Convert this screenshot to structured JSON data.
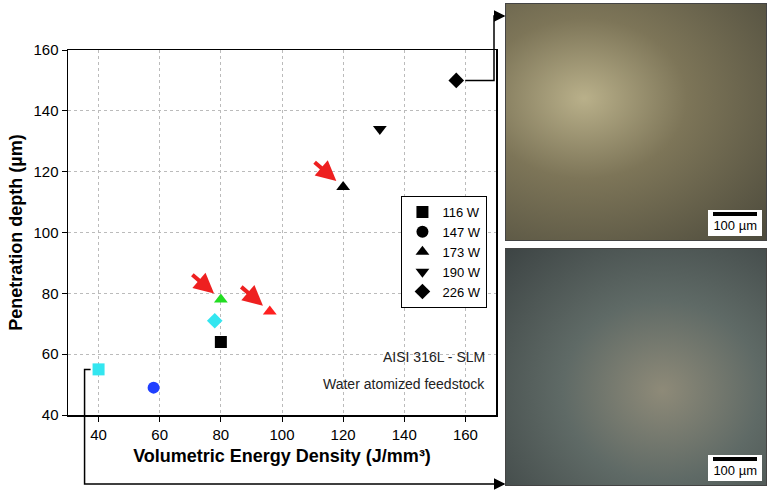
{
  "chart_data": {
    "type": "scatter",
    "x_label": "Volumetric Energy Density (J/mm³)",
    "y_label": "Penetration depth (µm)",
    "annotations": [
      "AISI 316L - SLM",
      "Water atomized feedstock"
    ],
    "xlim": [
      30,
      170
    ],
    "xticks": [
      40,
      60,
      80,
      100,
      120,
      140,
      160
    ],
    "ylim": [
      40,
      160
    ],
    "yticks": [
      40,
      60,
      80,
      100,
      120,
      140,
      160
    ],
    "grid": true,
    "legend": "right",
    "series": [
      {
        "name": "116 W",
        "marker": "square",
        "color": "#000000",
        "x": [
          40,
          80
        ],
        "values": [
          55,
          64
        ],
        "colors": [
          "#33e6f0",
          "#000000"
        ]
      },
      {
        "name": "147 W",
        "marker": "circle",
        "color": "#000000",
        "x": [
          58
        ],
        "values": [
          49
        ],
        "colors": [
          "#1f3fff"
        ]
      },
      {
        "name": "173 W",
        "marker": "triangle-up",
        "color": "#000000",
        "x": [
          80,
          96,
          120
        ],
        "values": [
          78,
          74,
          115
        ],
        "colors": [
          "#22dd22",
          "#ff2020",
          "#000000"
        ]
      },
      {
        "name": "190 W",
        "marker": "triangle-down",
        "color": "#000000",
        "x": [
          132
        ],
        "values": [
          134
        ],
        "colors": [
          "#000000"
        ]
      },
      {
        "name": "226 W",
        "marker": "diamond",
        "color": "#000000",
        "x": [
          78,
          157
        ],
        "values": [
          71,
          150
        ],
        "colors": [
          "#33e6f0",
          "#000000"
        ]
      }
    ]
  },
  "micrographs": [
    {
      "scale_bar": "100 µm"
    },
    {
      "scale_bar": "100 µm"
    }
  ]
}
